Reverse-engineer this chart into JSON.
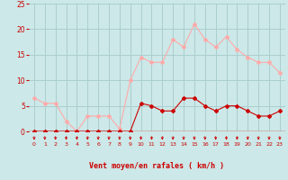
{
  "hours": [
    0,
    1,
    2,
    3,
    4,
    5,
    6,
    7,
    8,
    9,
    10,
    11,
    12,
    13,
    14,
    15,
    16,
    17,
    18,
    19,
    20,
    21,
    22,
    23
  ],
  "wind_avg": [
    0,
    0,
    0,
    0,
    0,
    0,
    0,
    0,
    0,
    0,
    5.5,
    5,
    4,
    4,
    6.5,
    6.5,
    5,
    4,
    5,
    5,
    4,
    3,
    3,
    4
  ],
  "wind_gust": [
    6.5,
    5.5,
    5.5,
    2,
    0,
    3,
    3,
    3,
    0.5,
    10,
    14.5,
    13.5,
    13.5,
    18,
    16.5,
    21,
    18,
    16.5,
    18.5,
    16,
    14.5,
    13.5,
    13.5,
    11.5
  ],
  "bg_color": "#cce8e8",
  "grid_color": "#aacece",
  "line_avg_color": "#cc0000",
  "line_gust_color": "#ffaaaa",
  "xlabel": "Vent moyen/en rafales ( km/h )",
  "xlabel_color": "#cc0000",
  "tick_color": "#cc0000",
  "ylim": [
    0,
    25
  ],
  "yticks": [
    0,
    5,
    10,
    15,
    20,
    25
  ],
  "arrow_color": "#cc0000"
}
